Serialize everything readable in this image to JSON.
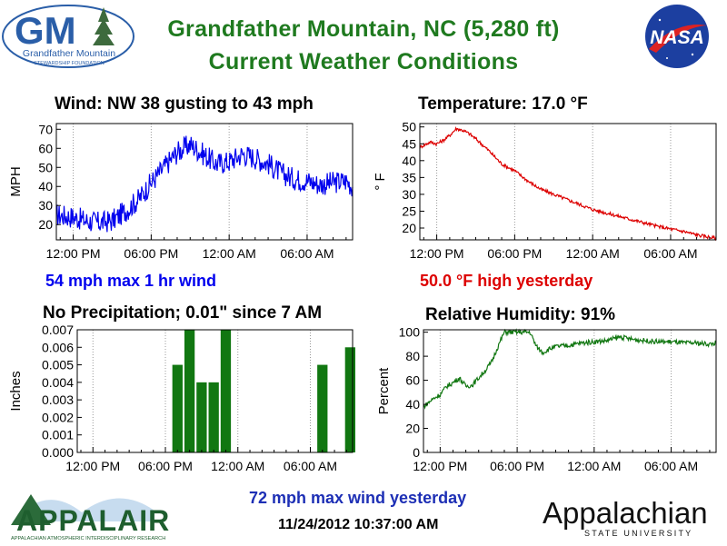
{
  "header": {
    "title_line1": "Grandfather Mountain, NC  (5,280 ft)",
    "title_line2": "Current Weather Conditions"
  },
  "logos": {
    "gm_letters": "GM",
    "gm_name": "Grandfather Mountain",
    "gm_sub": "STEWARDSHIP FOUNDATION",
    "nasa": "NASA",
    "appalair": "APPALAIR",
    "appalair_sub": "APPALACHIAN ATMOSPHERIC INTERDISCIPLINARY RESEARCH",
    "appstate": "Appalachian",
    "appstate_sub": "STATE UNIVERSITY"
  },
  "panels": {
    "wind": {
      "title": "Wind:  NW  38 gusting to 43 mph",
      "subtitle": "54 mph max 1 hr wind"
    },
    "temperature": {
      "title": "Temperature:  17.0 °F",
      "subtitle": "50.0 °F high yesterday"
    },
    "precip": {
      "title": "No Precipitation; 0.01\" since 7 AM"
    },
    "humidity": {
      "title": "Relative Humidity:     91%"
    }
  },
  "footer": {
    "max_wind_yesterday": "72 mph max wind yesterday",
    "timestamp": "11/24/2012 10:37:00 AM"
  },
  "colors": {
    "title_green": "#1f7a1f",
    "wind_blue": "#0000ee",
    "temp_red": "#dd0000",
    "precip_green": "#117711",
    "rh_green": "#117711"
  },
  "chart_data": [
    {
      "id": "wind",
      "type": "line",
      "ylabel": "MPH",
      "xlim": [
        -1.3,
        21.5
      ],
      "ylim": [
        12,
        73
      ],
      "yticks": [
        20,
        30,
        40,
        50,
        60,
        70
      ],
      "xticks": [
        {
          "x": 0,
          "label": "12:00 PM"
        },
        {
          "x": 6,
          "label": "06:00 PM"
        },
        {
          "x": 12,
          "label": "12:00 AM"
        },
        {
          "x": 18,
          "label": "06:00 AM"
        }
      ],
      "color": "#0000ee",
      "noise": 6,
      "x": [
        -1.3,
        0,
        1,
        2,
        3,
        4,
        5,
        6,
        7,
        8,
        9,
        10,
        11,
        12,
        13,
        14,
        15,
        16,
        17,
        18,
        19,
        20,
        21,
        21.5
      ],
      "y": [
        25,
        24,
        22,
        21,
        22,
        27,
        33,
        42,
        50,
        58,
        62,
        57,
        52,
        53,
        57,
        55,
        52,
        47,
        44,
        43,
        41,
        42,
        43,
        40
      ]
    },
    {
      "id": "temperature",
      "type": "line",
      "ylabel": "° F",
      "xlim": [
        -1.3,
        21.5
      ],
      "ylim": [
        16.5,
        51
      ],
      "yticks": [
        20,
        25,
        30,
        35,
        40,
        45,
        50
      ],
      "xticks": [
        {
          "x": 0,
          "label": "12:00 PM"
        },
        {
          "x": 6,
          "label": "06:00 PM"
        },
        {
          "x": 12,
          "label": "12:00 AM"
        },
        {
          "x": 18,
          "label": "06:00 AM"
        }
      ],
      "color": "#dd0000",
      "noise": 0.5,
      "x": [
        -1.3,
        -0.5,
        0,
        0.5,
        1,
        1.5,
        2,
        2.5,
        3,
        4,
        5,
        6,
        7,
        8,
        9,
        10,
        11,
        12,
        13,
        14,
        15,
        16,
        17,
        18,
        19,
        20,
        21,
        21.5
      ],
      "y": [
        44,
        45.5,
        45,
        46,
        47.5,
        49.5,
        49,
        48,
        46.5,
        43,
        39,
        37,
        34,
        31.5,
        30,
        28.5,
        27,
        25.5,
        24.5,
        23.5,
        22.5,
        21.5,
        20.5,
        19.7,
        19,
        18,
        17.3,
        17
      ]
    },
    {
      "id": "precip",
      "type": "bar",
      "ylabel": "Inches",
      "xlim": [
        -1.3,
        21.5
      ],
      "ylim": [
        0,
        0.007
      ],
      "yticks": [
        0,
        0.001,
        0.002,
        0.003,
        0.004,
        0.005,
        0.006,
        0.007
      ],
      "xticks": [
        {
          "x": 0,
          "label": "12:00 PM"
        },
        {
          "x": 6,
          "label": "06:00 PM"
        },
        {
          "x": 12,
          "label": "12:00 AM"
        },
        {
          "x": 18,
          "label": "06:00 AM"
        }
      ],
      "color": "#117711",
      "x": [
        7,
        8,
        9,
        10,
        11,
        19,
        21.3
      ],
      "y": [
        0.005,
        0.007,
        0.004,
        0.004,
        0.007,
        0.005,
        0.006
      ]
    },
    {
      "id": "humidity",
      "type": "line",
      "ylabel": "Percent",
      "xlim": [
        -1.3,
        21.5
      ],
      "ylim": [
        0,
        102
      ],
      "yticks": [
        0,
        20,
        40,
        60,
        80,
        100
      ],
      "xticks": [
        {
          "x": 0,
          "label": "12:00 PM"
        },
        {
          "x": 6,
          "label": "06:00 PM"
        },
        {
          "x": 12,
          "label": "12:00 AM"
        },
        {
          "x": 18,
          "label": "06:00 AM"
        }
      ],
      "color": "#117711",
      "noise": 2,
      "x": [
        -1.3,
        -0.5,
        0,
        0.5,
        1,
        1.5,
        2,
        2.5,
        3,
        3.5,
        4,
        4.5,
        5,
        6,
        7,
        7.5,
        8,
        8.5,
        9,
        10,
        11,
        12,
        13,
        14,
        15,
        16,
        17,
        18,
        19,
        20,
        21,
        21.5
      ],
      "y": [
        38,
        45,
        48,
        55,
        58,
        62,
        55,
        56,
        62,
        68,
        75,
        88,
        100,
        100,
        100,
        88,
        83,
        86,
        88,
        89,
        91,
        92,
        93,
        96,
        94,
        93,
        92,
        92,
        91,
        91,
        90,
        91
      ]
    }
  ]
}
